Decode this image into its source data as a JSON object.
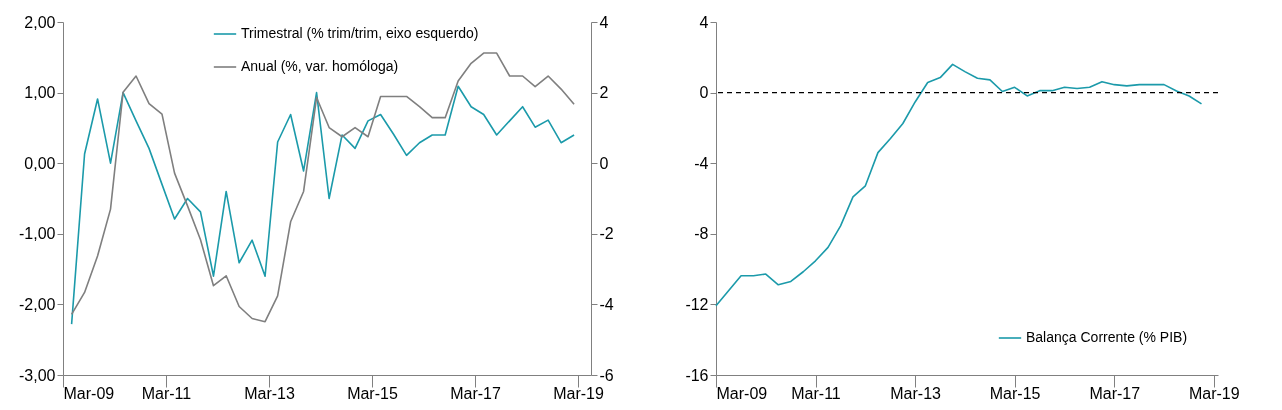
{
  "chart_data": [
    {
      "type": "line",
      "x": [
        "2009-05",
        "2009-08",
        "2009-11",
        "2010-02",
        "2010-05",
        "2010-08",
        "2010-11",
        "2011-02",
        "2011-05",
        "2011-08",
        "2011-11",
        "2012-02",
        "2012-05",
        "2012-08",
        "2012-11",
        "2013-02",
        "2013-05",
        "2013-08",
        "2013-11",
        "2014-02",
        "2014-05",
        "2014-08",
        "2014-11",
        "2015-02",
        "2015-05",
        "2015-08",
        "2015-11",
        "2016-02",
        "2016-05",
        "2016-08",
        "2016-11",
        "2017-02",
        "2017-05",
        "2017-08",
        "2017-11",
        "2018-02",
        "2018-05",
        "2018-08",
        "2018-11",
        "2019-02"
      ],
      "series": [
        {
          "name": "Trimestral (% trim/trim, eixo esquerdo)",
          "color": "#1b9aaa",
          "values": [
            -2.28,
            0.13,
            0.91,
            0.0,
            1.0,
            0.6,
            0.21,
            -0.3,
            -0.79,
            -0.5,
            -0.69,
            -1.6,
            -0.4,
            -1.41,
            -1.09,
            -1.6,
            0.3,
            0.69,
            -0.11,
            1.0,
            -0.5,
            0.4,
            0.21,
            0.6,
            0.69,
            0.41,
            0.11,
            0.29,
            0.4,
            0.4,
            1.09,
            0.8,
            0.69,
            0.4,
            0.6,
            0.8,
            0.51,
            0.61,
            0.29,
            0.4
          ]
        },
        {
          "name": "Anual (%, var. homóloga)",
          "color": "#7f7f7f",
          "axis": "y2",
          "values": [
            -4.28,
            -3.66,
            -2.63,
            -1.3,
            2.01,
            2.47,
            1.69,
            1.39,
            -0.28,
            -1.21,
            -2.17,
            -3.47,
            -3.19,
            -4.06,
            -4.4,
            -4.49,
            -3.76,
            -1.66,
            -0.8,
            1.86,
            1.01,
            0.75,
            1.01,
            0.75,
            1.89,
            1.89,
            1.89,
            1.6,
            1.29,
            1.29,
            2.33,
            2.83,
            3.12,
            3.12,
            2.47,
            2.47,
            2.17,
            2.47,
            2.1,
            1.67
          ]
        }
      ],
      "xlim": [
        "2009-03",
        "2019-06"
      ],
      "xticks": [
        {
          "value": "2009-03",
          "label": "Mar-09"
        },
        {
          "value": "2011-03",
          "label": "Mar-11"
        },
        {
          "value": "2013-03",
          "label": "Mar-13"
        },
        {
          "value": "2015-03",
          "label": "Mar-15"
        },
        {
          "value": "2017-03",
          "label": "Mar-17"
        },
        {
          "value": "2019-03",
          "label": "Mar-19"
        }
      ],
      "ylim": [
        -3,
        2
      ],
      "yticks": [
        {
          "value": -3,
          "label": "-3,00"
        },
        {
          "value": -2,
          "label": "-2,00"
        },
        {
          "value": -1,
          "label": "-1,00"
        },
        {
          "value": 0,
          "label": "0,00"
        },
        {
          "value": 1,
          "label": "1,00"
        },
        {
          "value": 2,
          "label": "2,00"
        }
      ],
      "y2lim": [
        -6,
        4
      ],
      "y2ticks": [
        -6,
        -4,
        -2,
        0,
        2,
        4
      ],
      "legend": "top right"
    },
    {
      "type": "line",
      "x": [
        "2009-03",
        "2009-06",
        "2009-09",
        "2009-12",
        "2010-03",
        "2010-06",
        "2010-09",
        "2010-12",
        "2011-03",
        "2011-06",
        "2011-09",
        "2011-12",
        "2012-03",
        "2012-06",
        "2012-09",
        "2012-12",
        "2013-03",
        "2013-06",
        "2013-09",
        "2013-12",
        "2014-03",
        "2014-06",
        "2014-09",
        "2014-12",
        "2015-03",
        "2015-06",
        "2015-09",
        "2015-12",
        "2016-03",
        "2016-06",
        "2016-09",
        "2016-12",
        "2017-03",
        "2017-06",
        "2017-09",
        "2017-12",
        "2018-03",
        "2018-06",
        "2018-09",
        "2018-12"
      ],
      "series": [
        {
          "name": "Balança Corrente (% PIB)",
          "color": "#1b9aaa",
          "values": [
            -12.08,
            -11.23,
            -10.38,
            -10.38,
            -10.28,
            -10.89,
            -10.7,
            -10.15,
            -9.53,
            -8.77,
            -7.55,
            -5.91,
            -5.28,
            -3.4,
            -2.6,
            -1.75,
            -0.53,
            0.57,
            0.85,
            1.6,
            1.19,
            0.81,
            0.72,
            0.06,
            0.3,
            -0.19,
            0.11,
            0.11,
            0.3,
            0.23,
            0.3,
            0.62,
            0.45,
            0.38,
            0.45,
            0.45,
            0.45,
            0.09,
            -0.19,
            -0.64
          ]
        }
      ],
      "xlim": [
        "2009-03",
        "2019-04"
      ],
      "xticks": [
        {
          "value": "2009-03",
          "label": "Mar-09"
        },
        {
          "value": "2011-03",
          "label": "Mar-11"
        },
        {
          "value": "2013-03",
          "label": "Mar-13"
        },
        {
          "value": "2015-03",
          "label": "Mar-15"
        },
        {
          "value": "2017-03",
          "label": "Mar-17"
        },
        {
          "value": "2019-03",
          "label": "Mar-19"
        }
      ],
      "ylim": [
        -16,
        4
      ],
      "yticks": [
        -16,
        -12,
        -8,
        -4,
        0,
        4
      ],
      "ref_lines": [
        {
          "axis": "y",
          "value": 0,
          "color": "#000000",
          "line_style": "dashed"
        }
      ],
      "legend": "bottom right"
    }
  ]
}
